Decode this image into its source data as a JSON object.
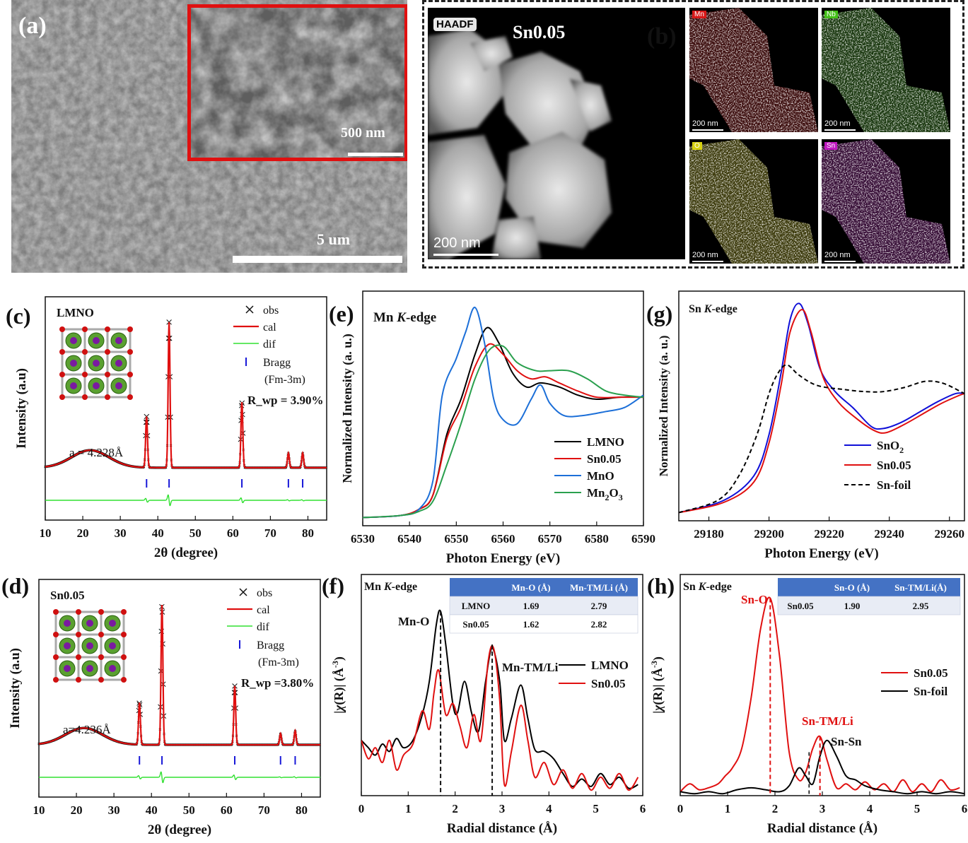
{
  "panel_a": {
    "label": "(a)",
    "inset_scale": "500 nm",
    "main_scale": "5 um",
    "colors": {
      "inset_border": "#e01010"
    }
  },
  "panel_b": {
    "label": "(b)",
    "haadf_tag": "HAADF",
    "sample": "Sn0.05",
    "scale": "200 nm",
    "maps": [
      {
        "element": "Mn",
        "scale": "200 nm",
        "color": "#d81818"
      },
      {
        "element": "Nb",
        "scale": "200 nm",
        "color": "#44c018"
      },
      {
        "element": "O",
        "scale": "200 nm",
        "color": "#d6d010"
      },
      {
        "element": "Sn",
        "scale": "200 nm",
        "color": "#c018c0"
      }
    ]
  },
  "chart_data": [
    {
      "panel": "(c)",
      "type": "line",
      "sample_label": "LMNO",
      "xlabel": "2θ (degree)",
      "ylabel": "Intensity (a.u)",
      "xlim": [
        10,
        85
      ],
      "xticks": [
        10,
        20,
        30,
        40,
        50,
        60,
        70,
        80
      ],
      "legend": [
        "obs",
        "cal",
        "dif",
        "Bragg",
        "(Fm-3m)"
      ],
      "rwp": "R_wp = 3.90%",
      "lattice": "a = 4.228Å",
      "peaks": [
        {
          "x": 37.0,
          "h": 0.35
        },
        {
          "x": 43.0,
          "h": 1.0
        },
        {
          "x": 62.4,
          "h": 0.45
        },
        {
          "x": 74.8,
          "h": 0.1
        },
        {
          "x": 78.6,
          "h": 0.1
        }
      ],
      "bragg": [
        37.0,
        43.0,
        62.4,
        74.8,
        78.6
      ]
    },
    {
      "panel": "(d)",
      "type": "line",
      "sample_label": "Sn0.05",
      "xlabel": "2θ (degree)",
      "ylabel": "Intensity (a.u)",
      "xlim": [
        10,
        85
      ],
      "xticks": [
        10,
        20,
        30,
        40,
        50,
        60,
        70,
        80
      ],
      "legend": [
        "obs",
        "cal",
        "dif",
        "Bragg",
        "(Fm-3m)"
      ],
      "rwp": "R_wp =3.80%",
      "lattice": "a=4.236Å",
      "peaks": [
        {
          "x": 36.8,
          "h": 0.3
        },
        {
          "x": 42.8,
          "h": 1.0
        },
        {
          "x": 62.2,
          "h": 0.42
        },
        {
          "x": 74.4,
          "h": 0.08
        },
        {
          "x": 78.3,
          "h": 0.1
        }
      ],
      "bragg": [
        36.8,
        42.8,
        62.2,
        74.4,
        78.3
      ]
    },
    {
      "panel": "(e)",
      "type": "line",
      "title": "Mn K-edge",
      "xlabel": "Photon Energy (eV)",
      "ylabel": "Normalized Intensity (a. u.)",
      "xlim": [
        6530,
        6590
      ],
      "xticks": [
        6530,
        6540,
        6550,
        6560,
        6570,
        6580,
        6590
      ],
      "series": [
        {
          "name": "LMNO",
          "color": "#000000",
          "x": [
            6530,
            6538,
            6542,
            6545,
            6548,
            6551,
            6554,
            6556.5,
            6559,
            6562,
            6565,
            6568,
            6572,
            6576,
            6580,
            6585,
            6590
          ],
          "y": [
            0.04,
            0.05,
            0.08,
            0.15,
            0.45,
            0.62,
            0.84,
            0.97,
            0.9,
            0.75,
            0.68,
            0.7,
            0.68,
            0.64,
            0.62,
            0.63,
            0.63
          ]
        },
        {
          "name": "Sn0.05",
          "color": "#e01010",
          "x": [
            6530,
            6538,
            6542,
            6545,
            6548,
            6551,
            6554,
            6557,
            6560,
            6563,
            6566,
            6569,
            6572,
            6576,
            6580,
            6585,
            6590
          ],
          "y": [
            0.04,
            0.05,
            0.08,
            0.15,
            0.43,
            0.58,
            0.78,
            0.89,
            0.84,
            0.76,
            0.72,
            0.73,
            0.7,
            0.66,
            0.63,
            0.63,
            0.63
          ]
        },
        {
          "name": "MnO",
          "color": "#1c6fd8",
          "x": [
            6530,
            6538,
            6542,
            6545,
            6547,
            6550,
            6552,
            6554,
            6556,
            6558,
            6560,
            6563,
            6566,
            6568,
            6570,
            6573,
            6577,
            6582,
            6586,
            6590
          ],
          "y": [
            0.04,
            0.05,
            0.08,
            0.22,
            0.64,
            0.82,
            0.95,
            1.07,
            0.9,
            0.62,
            0.52,
            0.5,
            0.62,
            0.69,
            0.6,
            0.54,
            0.54,
            0.56,
            0.58,
            0.64
          ]
        },
        {
          "name": "Mn2O3",
          "color": "#2aa04e",
          "x": [
            6530,
            6538,
            6542,
            6545,
            6548,
            6551,
            6554,
            6557,
            6560,
            6563,
            6567,
            6570,
            6574,
            6578,
            6582,
            6586,
            6590
          ],
          "y": [
            0.04,
            0.05,
            0.07,
            0.12,
            0.3,
            0.5,
            0.72,
            0.86,
            0.88,
            0.8,
            0.76,
            0.76,
            0.76,
            0.72,
            0.66,
            0.64,
            0.63
          ]
        }
      ]
    },
    {
      "panel": "(g)",
      "type": "line",
      "title": "Sn K-edge",
      "xlabel": "Photon Energy (eV)",
      "ylabel": "Normalized Intensity (a. u.)",
      "xlim": [
        29170,
        29265
      ],
      "xticks": [
        29180,
        29200,
        29220,
        29240,
        29260
      ],
      "series": [
        {
          "name": "SnO2",
          "color": "#1010d8",
          "x": [
            29170,
            29185,
            29195,
            29200,
            29204,
            29207,
            29210,
            29213,
            29217,
            29222,
            29228,
            29234,
            29238,
            29244,
            29250,
            29256,
            29262,
            29265
          ],
          "y": [
            0.04,
            0.1,
            0.22,
            0.42,
            0.72,
            0.98,
            1.06,
            0.96,
            0.74,
            0.63,
            0.55,
            0.46,
            0.45,
            0.48,
            0.53,
            0.58,
            0.62,
            0.62
          ]
        },
        {
          "name": "Sn0.05",
          "color": "#e01010",
          "x": [
            29170,
            29185,
            29195,
            29200,
            29204,
            29207,
            29211,
            29214,
            29218,
            29223,
            29229,
            29235,
            29239,
            29245,
            29251,
            29257,
            29263,
            29265
          ],
          "y": [
            0.04,
            0.09,
            0.19,
            0.38,
            0.66,
            0.92,
            1.03,
            0.92,
            0.7,
            0.58,
            0.5,
            0.44,
            0.43,
            0.47,
            0.52,
            0.57,
            0.61,
            0.62
          ]
        },
        {
          "name": "Sn-foil",
          "color": "#000000",
          "x": [
            29170,
            29183,
            29190,
            29196,
            29200,
            29203,
            29206,
            29210,
            29216,
            29225,
            29232,
            29238,
            29245,
            29252,
            29258,
            29265
          ],
          "y": [
            0.04,
            0.1,
            0.22,
            0.42,
            0.62,
            0.72,
            0.76,
            0.71,
            0.66,
            0.64,
            0.63,
            0.63,
            0.65,
            0.68,
            0.67,
            0.62
          ]
        }
      ]
    },
    {
      "panel": "(f)",
      "type": "line",
      "title": "Mn K-edge",
      "xlabel": "Radial distance (Å)",
      "ylabel": "|χ(R)| (Å^-3)",
      "xlim": [
        0,
        6
      ],
      "xticks": [
        0,
        1,
        2,
        3,
        4,
        5,
        6
      ],
      "annotations": [
        "Mn-O",
        "Mn-TM/Li"
      ],
      "dashed_lines": [
        1.69,
        2.79
      ],
      "series": [
        {
          "name": "LMNO",
          "color": "#000000",
          "x": [
            0,
            0.15,
            0.3,
            0.45,
            0.6,
            0.75,
            0.9,
            1.1,
            1.3,
            1.45,
            1.6,
            1.69,
            1.8,
            1.95,
            2.05,
            2.2,
            2.35,
            2.5,
            2.65,
            2.79,
            2.95,
            3.05,
            3.2,
            3.4,
            3.55,
            3.7,
            3.9,
            4.1,
            4.3,
            4.5,
            4.7,
            4.9,
            5.1,
            5.3,
            5.5,
            5.7,
            5.9
          ],
          "y": [
            0.3,
            0.26,
            0.22,
            0.28,
            0.24,
            0.31,
            0.26,
            0.3,
            0.44,
            0.62,
            0.93,
            1.0,
            0.82,
            0.5,
            0.45,
            0.62,
            0.45,
            0.35,
            0.62,
            0.8,
            0.62,
            0.3,
            0.42,
            0.6,
            0.42,
            0.25,
            0.24,
            0.2,
            0.12,
            0.05,
            0.09,
            0.05,
            0.12,
            0.06,
            0.1,
            0.04,
            0.06
          ]
        },
        {
          "name": "Sn0.05",
          "color": "#e01010",
          "x": [
            0,
            0.15,
            0.3,
            0.45,
            0.6,
            0.75,
            0.9,
            1.1,
            1.3,
            1.45,
            1.55,
            1.65,
            1.8,
            1.95,
            2.1,
            2.25,
            2.4,
            2.55,
            2.7,
            2.82,
            2.95,
            3.05,
            3.2,
            3.4,
            3.55,
            3.7,
            3.9,
            4.1,
            4.3,
            4.5,
            4.7,
            4.9,
            5.1,
            5.3,
            5.5,
            5.7,
            5.9
          ],
          "y": [
            0.3,
            0.2,
            0.26,
            0.18,
            0.3,
            0.14,
            0.22,
            0.28,
            0.46,
            0.36,
            0.56,
            0.68,
            0.44,
            0.5,
            0.38,
            0.26,
            0.44,
            0.3,
            0.72,
            0.8,
            0.52,
            0.06,
            0.24,
            0.49,
            0.3,
            0.1,
            0.18,
            0.06,
            0.14,
            0.04,
            0.12,
            0.03,
            0.1,
            0.04,
            0.12,
            0.03,
            0.1
          ]
        }
      ],
      "table": {
        "headers": [
          "",
          "Mn-O (Å)",
          "Mn-TM/Li (Å)"
        ],
        "rows": [
          [
            "LMNO",
            "1.69",
            "2.79"
          ],
          [
            "Sn0.05",
            "1.62",
            "2.82"
          ]
        ]
      }
    },
    {
      "panel": "(h)",
      "type": "line",
      "title": "Sn K-edge",
      "xlabel": "Radial distance (Å)",
      "ylabel": "|χ(R)| (Å^-3)",
      "xlim": [
        0,
        6
      ],
      "xticks": [
        0,
        1,
        2,
        3,
        4,
        5,
        6
      ],
      "annotations": [
        "Sn-O",
        "Sn-TM/Li",
        "Sn-Sn"
      ],
      "dashed_lines": [
        1.9,
        2.95
      ],
      "dashed_line_black": 2.72,
      "series": [
        {
          "name": "Sn0.05",
          "color": "#e01010",
          "x": [
            0,
            0.2,
            0.4,
            0.6,
            0.8,
            0.95,
            1.1,
            1.3,
            1.5,
            1.7,
            1.9,
            2.1,
            2.3,
            2.5,
            2.65,
            2.8,
            2.95,
            3.1,
            3.3,
            3.5,
            3.7,
            3.9,
            4.1,
            4.3,
            4.5,
            4.7,
            4.9,
            5.1,
            5.3,
            5.5,
            5.7,
            5.9
          ],
          "y": [
            0.02,
            0.06,
            0.03,
            0.04,
            0.06,
            0.1,
            0.14,
            0.24,
            0.5,
            0.85,
            1.0,
            0.7,
            0.22,
            0.08,
            0.12,
            0.24,
            0.3,
            0.18,
            0.04,
            0.06,
            0.03,
            0.07,
            0.03,
            0.06,
            0.02,
            0.08,
            0.02,
            0.06,
            0.02,
            0.08,
            0.03,
            0.04
          ]
        },
        {
          "name": "Sn-foil",
          "color": "#000000",
          "x": [
            0,
            0.3,
            0.6,
            0.9,
            1.2,
            1.5,
            1.8,
            2.1,
            2.3,
            2.5,
            2.65,
            2.8,
            2.95,
            3.1,
            3.3,
            3.5,
            3.7,
            3.9,
            4.2,
            4.5,
            4.8,
            5.1,
            5.4,
            5.7,
            6.0
          ],
          "y": [
            0.02,
            0.01,
            0.02,
            0.01,
            0.03,
            0.04,
            0.03,
            0.02,
            0.05,
            0.14,
            0.1,
            0.06,
            0.2,
            0.28,
            0.2,
            0.1,
            0.08,
            0.05,
            0.03,
            0.02,
            0.01,
            0.02,
            0.01,
            0.02,
            0.01
          ]
        }
      ],
      "table": {
        "headers": [
          "",
          "Sn-O (Å)",
          "Sn-TM/Li(Å)"
        ],
        "rows": [
          [
            "Sn0.05",
            "1.90",
            "2.95"
          ]
        ]
      }
    }
  ]
}
